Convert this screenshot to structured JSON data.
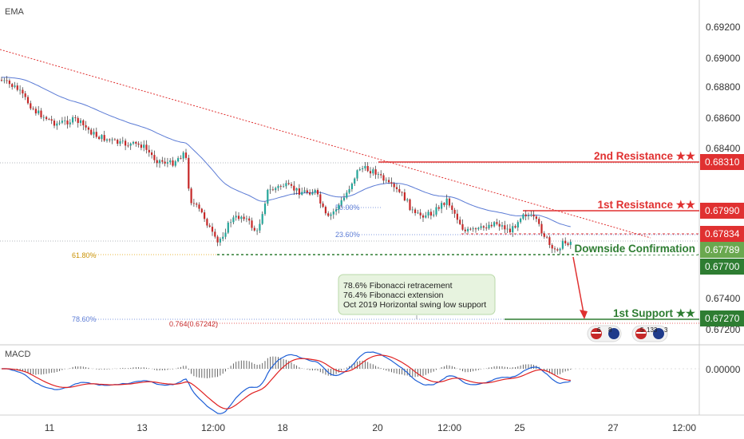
{
  "indicators": {
    "main": "EMA",
    "sub": "MACD"
  },
  "price_axis": [
    "0.69200",
    "0.69000",
    "0.68800",
    "0.68600",
    "0.68400",
    "0.67400",
    "0.67200"
  ],
  "macd_axis": [
    "0.00000"
  ],
  "time_axis": [
    "11",
    "13",
    "12:00",
    "18",
    "20",
    "12:00",
    "25",
    "27",
    "12:00"
  ],
  "levels": [
    {
      "label": "2nd Resistance ★★",
      "price": "0.68310",
      "color": "#e03131"
    },
    {
      "label": "1st Resistance ★★",
      "price": "0.67990",
      "color": "#e03131"
    },
    {
      "label": "",
      "price": "0.67834",
      "color": "#e03131"
    },
    {
      "label": "",
      "price": "0.67789",
      "color": "#6aa84f"
    },
    {
      "label": "Downside Confirmation",
      "price": "0.67700",
      "color": "#2e7d32"
    },
    {
      "label": "1st Support ★★",
      "price": "0.67270",
      "color": "#2e7d32"
    }
  ],
  "fib_labels": {
    "f50": "50.00%",
    "f236": "23.60%",
    "f618": "61.80%",
    "f786": "78.60%",
    "ext764": "0.764(0.67242)"
  },
  "annotation": [
    "78.6% Fibonacci retracement",
    "76.4% Fibonacci extension",
    "Oct 2019 Horizontal swing low support"
  ],
  "events": [
    "6",
    "8",
    "5",
    "133",
    "3"
  ],
  "colors": {
    "up": "#26a69a",
    "down": "#c62828",
    "ema": "#5b7bd5",
    "macd": "#1e5fd6",
    "signal": "#e02020"
  },
  "chart_data": {
    "type": "candlestick",
    "ylim": [
      0.6718,
      0.6932
    ],
    "x": [
      "11",
      "12",
      "13",
      "14",
      "15",
      "18",
      "19",
      "20",
      "21",
      "24",
      "25",
      "26"
    ],
    "close": [
      0.6865,
      0.6853,
      0.6842,
      0.6826,
      0.6788,
      0.6815,
      0.6818,
      0.6827,
      0.6808,
      0.6786,
      0.6794,
      0.6779
    ],
    "resistance_levels": [
      0.6831,
      0.6799,
      0.67834
    ],
    "support_levels": [
      0.6777,
      0.6727
    ],
    "fibonacci": {
      "50.00%": 0.6797,
      "23.60%": 0.6783,
      "61.80%": 0.6775,
      "78.60%": 0.6727
    }
  }
}
